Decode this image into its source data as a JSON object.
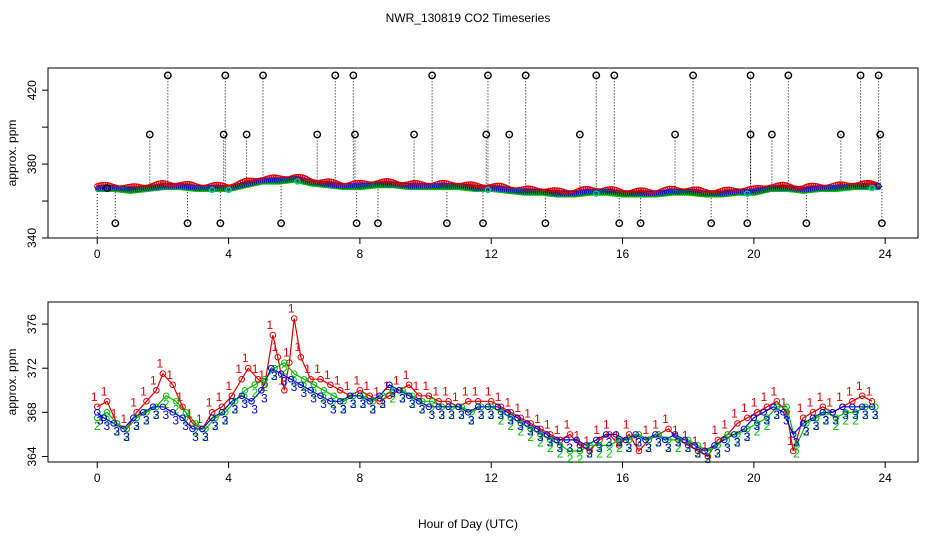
{
  "title": "NWR_130819  CO2 Timeseries",
  "xlabel": "Hour of Day (UTC)",
  "colors": {
    "series1": "#dd0000",
    "series2": "#00bb00",
    "series3": "#0000dd",
    "flag": "#000000",
    "cyan": "#00cccc"
  },
  "chart_data": [
    {
      "type": "scatter",
      "panel": "top",
      "ylabel": "approx. ppm",
      "xlim": [
        -1.5,
        25
      ],
      "ylim": [
        340,
        432
      ],
      "xticks": [
        0,
        4,
        8,
        12,
        16,
        20,
        24
      ],
      "yticks": [
        340,
        380,
        420
      ],
      "baseline": {
        "x": [
          0,
          0.5,
          1,
          1.5,
          2,
          2.5,
          3,
          3.5,
          4,
          4.5,
          5,
          5.5,
          6,
          6.5,
          7,
          7.5,
          8,
          8.5,
          9,
          9.5,
          10,
          10.5,
          11,
          11.5,
          12,
          12.5,
          13,
          13.5,
          14,
          14.5,
          15,
          15.5,
          16,
          16.5,
          17,
          17.5,
          18,
          18.5,
          19,
          19.5,
          20,
          20.5,
          21,
          21.5,
          22,
          22.5,
          23,
          23.5,
          23.8
        ],
        "y": [
          367,
          367,
          366,
          367,
          368,
          368,
          367,
          367,
          367,
          369,
          371,
          371,
          372,
          370,
          369,
          368,
          368,
          369,
          369,
          368,
          368,
          368,
          368,
          367,
          367,
          366,
          365,
          365,
          364,
          364,
          365,
          365,
          364,
          364,
          364,
          365,
          365,
          364,
          364,
          365,
          365,
          367,
          367,
          366,
          367,
          367,
          368,
          368,
          368
        ]
      },
      "spikes_high": [
        {
          "x": 2.15,
          "y": 428
        },
        {
          "x": 3.9,
          "y": 428
        },
        {
          "x": 5.05,
          "y": 428
        },
        {
          "x": 7.25,
          "y": 428
        },
        {
          "x": 7.8,
          "y": 428
        },
        {
          "x": 10.2,
          "y": 428
        },
        {
          "x": 11.9,
          "y": 428
        },
        {
          "x": 13.05,
          "y": 428
        },
        {
          "x": 15.2,
          "y": 428
        },
        {
          "x": 15.75,
          "y": 428
        },
        {
          "x": 18.15,
          "y": 428
        },
        {
          "x": 19.9,
          "y": 428
        },
        {
          "x": 21.05,
          "y": 428
        },
        {
          "x": 23.25,
          "y": 428
        },
        {
          "x": 23.8,
          "y": 428
        },
        {
          "x": 1.6,
          "y": 396
        },
        {
          "x": 3.85,
          "y": 396
        },
        {
          "x": 4.55,
          "y": 396
        },
        {
          "x": 6.7,
          "y": 396
        },
        {
          "x": 7.85,
          "y": 396
        },
        {
          "x": 9.65,
          "y": 396
        },
        {
          "x": 11.85,
          "y": 396
        },
        {
          "x": 12.55,
          "y": 396
        },
        {
          "x": 14.7,
          "y": 396
        },
        {
          "x": 17.6,
          "y": 396
        },
        {
          "x": 19.9,
          "y": 396
        },
        {
          "x": 20.55,
          "y": 396
        },
        {
          "x": 22.65,
          "y": 396
        },
        {
          "x": 23.85,
          "y": 396
        }
      ],
      "spikes_low": [
        {
          "x": 0.55,
          "y": 348
        },
        {
          "x": 2.75,
          "y": 348
        },
        {
          "x": 3.75,
          "y": 348
        },
        {
          "x": 5.6,
          "y": 348
        },
        {
          "x": 7.9,
          "y": 348
        },
        {
          "x": 8.55,
          "y": 348
        },
        {
          "x": 10.65,
          "y": 348
        },
        {
          "x": 11.75,
          "y": 348
        },
        {
          "x": 13.65,
          "y": 348
        },
        {
          "x": 15.9,
          "y": 348
        },
        {
          "x": 16.55,
          "y": 348
        },
        {
          "x": 18.7,
          "y": 348
        },
        {
          "x": 19.8,
          "y": 348
        },
        {
          "x": 21.6,
          "y": 348
        },
        {
          "x": 23.9,
          "y": 348
        }
      ]
    },
    {
      "type": "scatter",
      "panel": "bottom",
      "ylabel": "approx. ppm",
      "xlim": [
        -1.5,
        25
      ],
      "ylim": [
        363.5,
        378
      ],
      "xticks": [
        0,
        4,
        8,
        12,
        16,
        20,
        24
      ],
      "yticks": [
        364,
        368,
        372,
        376
      ],
      "series": [
        {
          "name": "1",
          "x": [
            0,
            0.3,
            0.6,
            0.9,
            1.2,
            1.5,
            1.8,
            2.0,
            2.3,
            2.6,
            2.9,
            3.2,
            3.5,
            3.8,
            4.1,
            4.4,
            4.6,
            4.9,
            5.1,
            5.35,
            5.5,
            5.7,
            5.85,
            6.0,
            6.2,
            6.5,
            6.8,
            7.1,
            7.4,
            7.7,
            8.0,
            8.3,
            8.6,
            8.9,
            9.2,
            9.5,
            9.8,
            10.1,
            10.4,
            10.7,
            11.0,
            11.3,
            11.6,
            12.0,
            12.3,
            12.6,
            12.9,
            13.2,
            13.5,
            13.8,
            14.1,
            14.4,
            14.7,
            15.0,
            15.3,
            15.6,
            15.9,
            16.2,
            16.5,
            16.8,
            17.1,
            17.4,
            17.7,
            18.0,
            18.3,
            18.6,
            18.9,
            19.2,
            19.5,
            19.8,
            20.1,
            20.4,
            20.7,
            21.0,
            21.2,
            21.5,
            21.8,
            22.1,
            22.4,
            22.7,
            23.0,
            23.3,
            23.6
          ],
          "y": [
            368.5,
            369,
            367,
            366.5,
            368,
            369,
            370,
            371.5,
            370.5,
            368.5,
            367,
            366.5,
            368,
            368.5,
            369.5,
            371,
            372,
            371,
            370.5,
            375,
            373,
            370,
            372.5,
            376.5,
            373,
            371,
            371,
            370.5,
            370,
            369.5,
            370,
            369.5,
            369,
            369.5,
            370,
            370.5,
            369.5,
            369.5,
            369,
            369,
            368.5,
            369,
            369,
            369,
            368.5,
            368,
            367.5,
            367,
            366.5,
            366,
            365.5,
            366,
            365,
            364.5,
            365.5,
            366,
            365,
            366,
            364.5,
            365.5,
            366,
            366.5,
            365.5,
            365,
            364.5,
            364,
            365.5,
            366,
            367,
            367.5,
            368,
            368.5,
            369,
            368,
            364.5,
            367.5,
            368,
            368.5,
            368,
            368.5,
            369,
            369.5,
            369
          ]
        },
        {
          "name": "2",
          "x": [
            0,
            0.3,
            0.6,
            0.9,
            1.2,
            1.5,
            1.8,
            2.1,
            2.4,
            2.7,
            3.0,
            3.3,
            3.6,
            3.9,
            4.2,
            4.5,
            4.8,
            5.1,
            5.4,
            5.7,
            6.0,
            6.3,
            6.6,
            6.9,
            7.2,
            7.5,
            7.8,
            8.1,
            8.4,
            8.7,
            9.0,
            9.3,
            9.6,
            9.9,
            10.2,
            10.5,
            10.8,
            11.1,
            11.4,
            11.7,
            12.0,
            12.3,
            12.6,
            12.9,
            13.2,
            13.5,
            13.8,
            14.1,
            14.4,
            14.7,
            15.0,
            15.3,
            15.6,
            15.9,
            16.2,
            16.5,
            16.8,
            17.1,
            17.4,
            17.7,
            18.0,
            18.3,
            18.6,
            18.9,
            19.2,
            19.5,
            19.8,
            20.1,
            20.4,
            20.7,
            21.0,
            21.3,
            21.6,
            21.9,
            22.2,
            22.5,
            22.8,
            23.1,
            23.4,
            23.7
          ],
          "y": [
            367.5,
            368,
            367,
            366.5,
            367.5,
            368,
            368.5,
            369.5,
            369,
            368,
            367,
            366.5,
            367.5,
            368,
            369,
            370,
            370.5,
            371,
            372,
            372.5,
            371.5,
            371,
            370.5,
            370,
            369.5,
            369,
            369.5,
            369.5,
            369,
            369.5,
            370,
            370,
            369.5,
            369,
            369,
            368.5,
            368.5,
            368.5,
            368,
            368.5,
            368.5,
            368,
            367.5,
            367,
            366.5,
            366,
            365.5,
            365,
            364.5,
            364.5,
            365,
            365,
            365,
            365.5,
            365.5,
            366,
            365.5,
            366,
            365.5,
            365.5,
            365.5,
            365,
            364.5,
            365,
            366,
            366,
            366.5,
            367,
            367.5,
            368.5,
            368.5,
            365,
            367,
            367.5,
            368,
            367.5,
            368,
            368,
            368.5,
            368.5
          ]
        },
        {
          "name": "3",
          "x": [
            0,
            0.2,
            0.5,
            0.8,
            1.1,
            1.4,
            1.7,
            2.0,
            2.3,
            2.6,
            2.9,
            3.2,
            3.5,
            3.8,
            4.1,
            4.4,
            4.7,
            5.0,
            5.3,
            5.6,
            5.9,
            6.2,
            6.5,
            6.8,
            7.1,
            7.4,
            7.7,
            8.0,
            8.3,
            8.6,
            8.9,
            9.2,
            9.5,
            9.8,
            10.1,
            10.4,
            10.7,
            11.0,
            11.3,
            11.6,
            11.9,
            12.2,
            12.5,
            12.8,
            13.1,
            13.4,
            13.7,
            14.0,
            14.3,
            14.6,
            14.9,
            15.2,
            15.5,
            15.8,
            16.1,
            16.4,
            16.7,
            17.0,
            17.3,
            17.6,
            17.9,
            18.2,
            18.5,
            18.8,
            19.1,
            19.4,
            19.7,
            20.0,
            20.3,
            20.6,
            20.9,
            21.2,
            21.5,
            21.8,
            22.1,
            22.4,
            22.7,
            23.0,
            23.3,
            23.6
          ],
          "y": [
            368,
            367.5,
            367,
            366.5,
            367.5,
            368,
            368.5,
            368.5,
            368,
            367.5,
            366.5,
            366.5,
            367.5,
            368,
            369,
            369.5,
            369,
            370,
            372,
            371.5,
            371,
            370.5,
            370,
            369.5,
            369,
            369,
            369.5,
            369.5,
            369,
            369.5,
            370.5,
            370,
            369.5,
            369,
            368.5,
            368.5,
            368.5,
            368.5,
            368,
            368.5,
            368.5,
            368.5,
            368,
            367.5,
            367,
            366.5,
            366,
            365.5,
            365.5,
            365.5,
            365,
            365.5,
            366,
            366,
            365.5,
            366,
            365.5,
            366,
            365.5,
            366,
            365.5,
            365,
            364.5,
            365,
            365.5,
            366,
            366.5,
            367.5,
            368,
            368.5,
            368,
            366,
            367,
            367.5,
            368,
            368,
            368.5,
            368.5,
            368.5,
            368.5
          ]
        }
      ]
    }
  ]
}
